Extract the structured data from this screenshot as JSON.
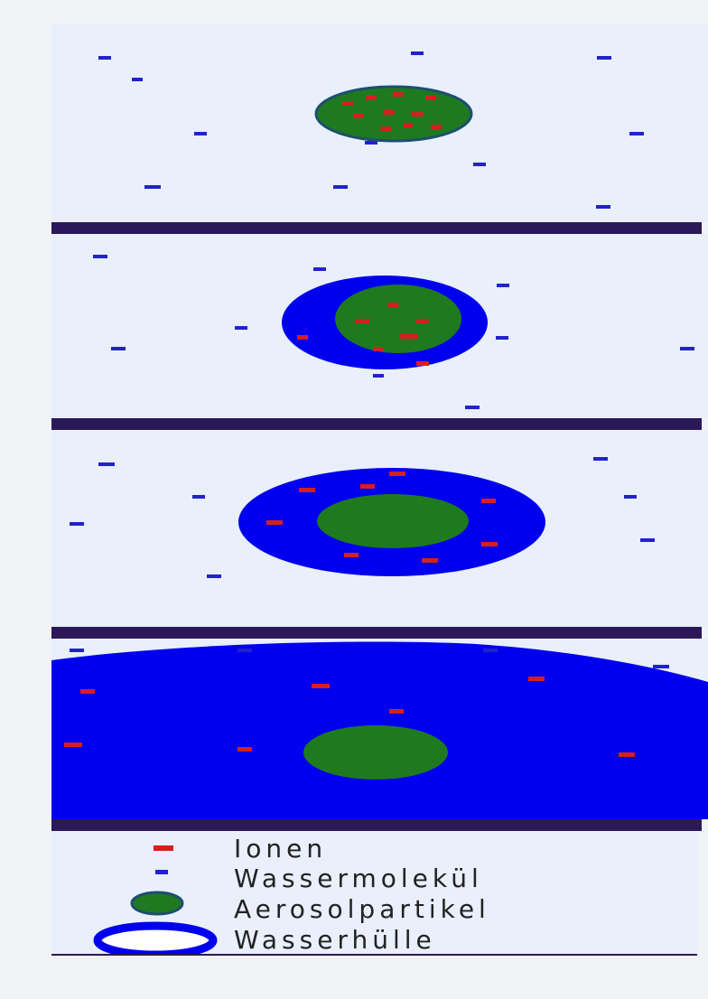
{
  "colors": {
    "page_background": "#f1f3f6",
    "panel_background": "#e9effb",
    "separator": "#2b1858",
    "ion": "#d42020",
    "water_molecule": "#2222cc",
    "aerosol_particle": "#1f7a1f",
    "aerosol_outline": "#1d4f6e",
    "water_shell": "#0000ee"
  },
  "legend": {
    "items": [
      {
        "label": "Ionen",
        "icon": "ion-icon"
      },
      {
        "label": "Wassermolekül",
        "icon": "water-molecule-icon"
      },
      {
        "label": "Aerosolpartikel",
        "icon": "aerosol-particle-icon"
      },
      {
        "label": "Wasserhülle",
        "icon": "water-shell-icon"
      }
    ]
  },
  "panels": [
    {
      "stage": 1,
      "content": [
        "aerosol-particle",
        "ions-inside-particle",
        "free-water-molecules"
      ]
    },
    {
      "stage": 2,
      "content": [
        "thin-water-shell",
        "aerosol-particle",
        "ions",
        "free-water-molecules"
      ]
    },
    {
      "stage": 3,
      "content": [
        "thick-water-shell",
        "aerosol-particle",
        "dissolved-ions",
        "free-water-molecules"
      ]
    },
    {
      "stage": 4,
      "content": [
        "large-droplet",
        "aerosol-particle",
        "dissolved-ions",
        "free-water-molecules"
      ]
    }
  ]
}
